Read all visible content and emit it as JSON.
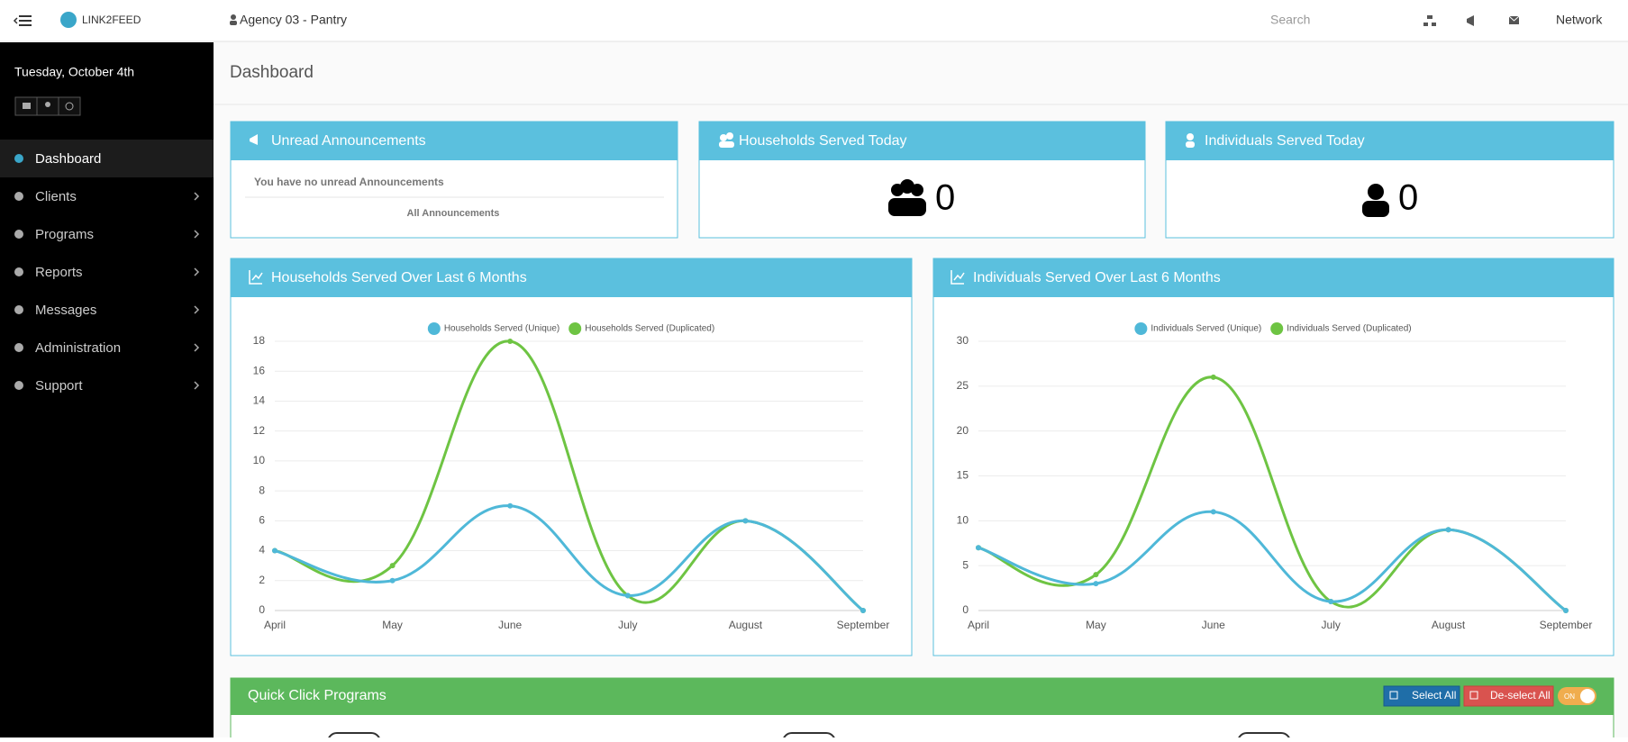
{
  "header": {
    "brand": "LINK2FEED",
    "agency": "Agency 03 - Pantry",
    "search": "Search",
    "network": "Network"
  },
  "sidebar": {
    "date": "Tuesday, October 4th",
    "menu": [
      "Dashboard",
      "Clients",
      "Programs",
      "Reports",
      "Messages",
      "Administration",
      "Support"
    ],
    "active": 0
  },
  "page_title": "Dashboard",
  "panels": [
    {
      "title": "Unread Announcements",
      "message": "You have no unread Announcements",
      "link": "All Announcements"
    },
    {
      "title": "Households Served Today",
      "value": 0
    },
    {
      "title": "Individuals Served Today",
      "value": 0
    }
  ],
  "chart_data": [
    {
      "type": "line",
      "title": "Households Served Over Last 6 Months",
      "categories": [
        "April",
        "May",
        "June",
        "July",
        "August",
        "September"
      ],
      "series": [
        {
          "name": "Households Served (Unique)",
          "color": "#4fb8d8",
          "values": [
            4,
            2,
            7,
            1,
            6,
            0
          ]
        },
        {
          "name": "Households Served (Duplicated)",
          "color": "#6ec443",
          "values": [
            4,
            3,
            18,
            1,
            6,
            0
          ]
        }
      ],
      "ylim": [
        0,
        18
      ],
      "yticks": [
        0,
        2,
        4,
        6,
        8,
        10,
        12,
        14,
        16,
        18
      ],
      "grid": true
    },
    {
      "type": "line",
      "title": "Individuals Served Over Last 6 Months",
      "categories": [
        "April",
        "May",
        "June",
        "July",
        "August",
        "September"
      ],
      "series": [
        {
          "name": "Individuals Served (Unique)",
          "color": "#4fb8d8",
          "values": [
            7,
            3,
            11,
            1,
            9,
            0
          ]
        },
        {
          "name": "Individuals Served (Duplicated)",
          "color": "#6ec443",
          "values": [
            7,
            4,
            26,
            1,
            9,
            0
          ]
        }
      ],
      "ylim": [
        0,
        30
      ],
      "yticks": [
        0,
        5,
        10,
        15,
        20,
        25,
        30
      ],
      "grid": true
    }
  ],
  "quick_click": {
    "title": "Quick Click Programs",
    "select_all": "Select All",
    "deselect_all": "De-select All",
    "toggle": "ON"
  }
}
